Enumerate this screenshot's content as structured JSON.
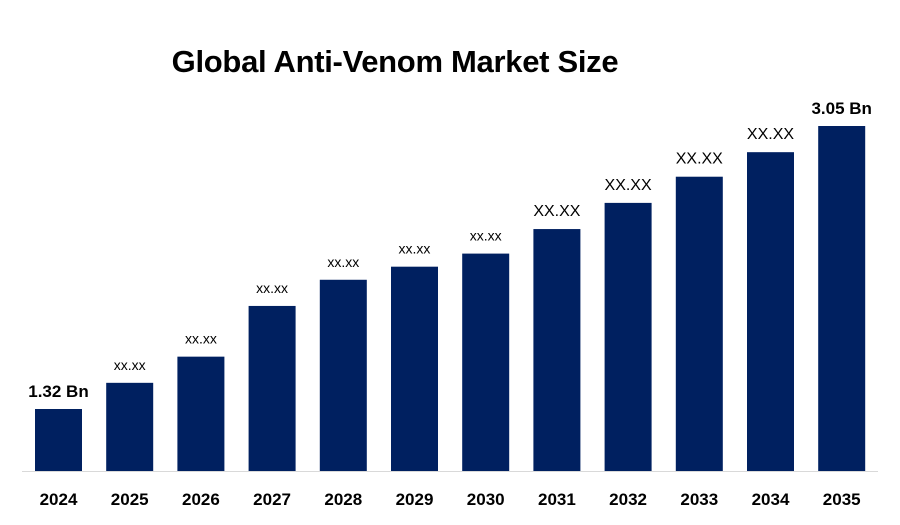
{
  "chart_data": {
    "type": "bar",
    "title": "Global Anti-Venom Market Size",
    "xlabel": "",
    "ylabel": "",
    "categories": [
      "2024",
      "2025",
      "2026",
      "2027",
      "2028",
      "2029",
      "2030",
      "2031",
      "2032",
      "2033",
      "2034",
      "2035"
    ],
    "values": [
      1.32,
      1.48,
      1.64,
      1.95,
      2.11,
      2.19,
      2.27,
      2.42,
      2.58,
      2.74,
      2.89,
      3.05
    ],
    "data_labels": [
      "1.32 Bn",
      "xx.xx",
      "xx.xx",
      "xx.xx",
      "xx.xx",
      "xx.xx",
      "xx.xx",
      "XX.XX",
      "XX.XX",
      "XX.XX",
      "XX.XX",
      "3.05 Bn"
    ],
    "unit": "Bn",
    "ylim": [
      0.94,
      3.05
    ],
    "grid": false,
    "legend": "none",
    "bar_color": "#002060"
  }
}
